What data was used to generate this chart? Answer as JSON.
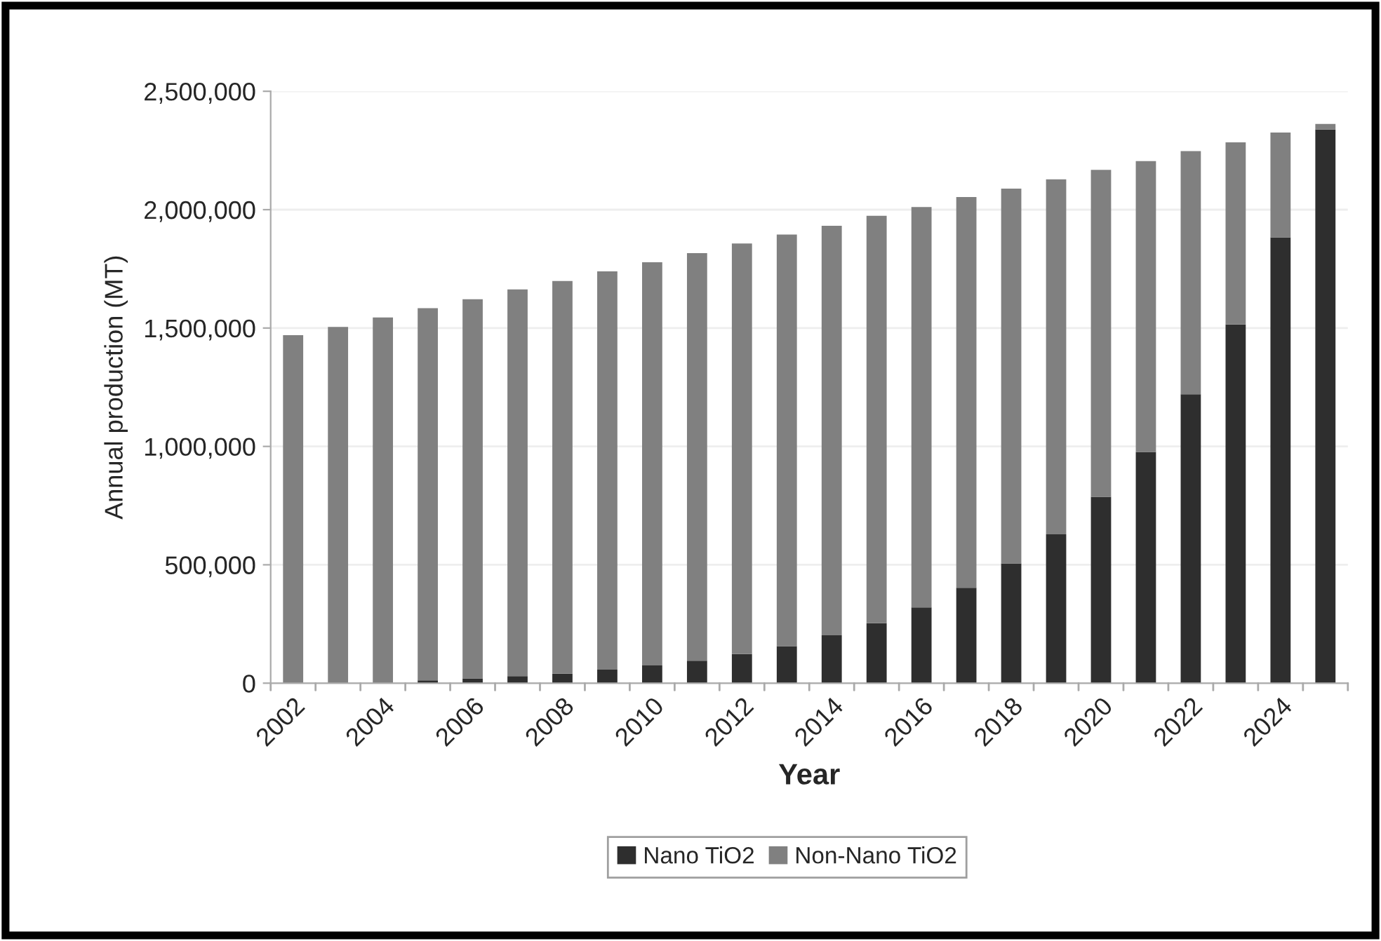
{
  "chart_data": {
    "type": "bar",
    "stacked": true,
    "xlabel": "Year",
    "ylabel": "Annual production (MT)",
    "categories": [
      "2002",
      null,
      "2004",
      null,
      "2006",
      null,
      "2008",
      null,
      "2010",
      null,
      "2012",
      null,
      "2014",
      null,
      "2016",
      null,
      "2018",
      null,
      "2020",
      null,
      "2022",
      null,
      "2024",
      null
    ],
    "series": [
      {
        "name": "Nano TiO2",
        "color": "#2e2e2e",
        "values": [
          null,
          null,
          null,
          12000,
          20000,
          30000,
          40000,
          57000,
          75000,
          95000,
          123000,
          156000,
          202000,
          253000,
          320000,
          403000,
          506000,
          629000,
          787000,
          977000,
          1220000,
          1515000,
          1883000,
          2338000
        ]
      },
      {
        "name": "Non-Nano TiO2",
        "color": "#808080",
        "values": [
          1470000,
          1505000,
          1545000,
          1572000,
          1602000,
          1633000,
          1659000,
          1682000,
          1703000,
          1721000,
          1734000,
          1739000,
          1730000,
          1721000,
          1691000,
          1650000,
          1583000,
          1499000,
          1381000,
          1228000,
          1027000,
          769000,
          443000,
          24000
        ]
      }
    ],
    "ylim": [
      0,
      2500000
    ],
    "yticks": [
      0,
      {
        "value": 500000,
        "label": "500,000"
      },
      {
        "value": 1000000,
        "label": "1,000,000"
      },
      {
        "value": 1500000,
        "label": "1,500,000"
      },
      {
        "value": 2000000,
        "label": "2,000,000"
      },
      {
        "value": 2500000,
        "label": "2,500,000"
      }
    ],
    "grid": "y",
    "legend": "bottom"
  }
}
